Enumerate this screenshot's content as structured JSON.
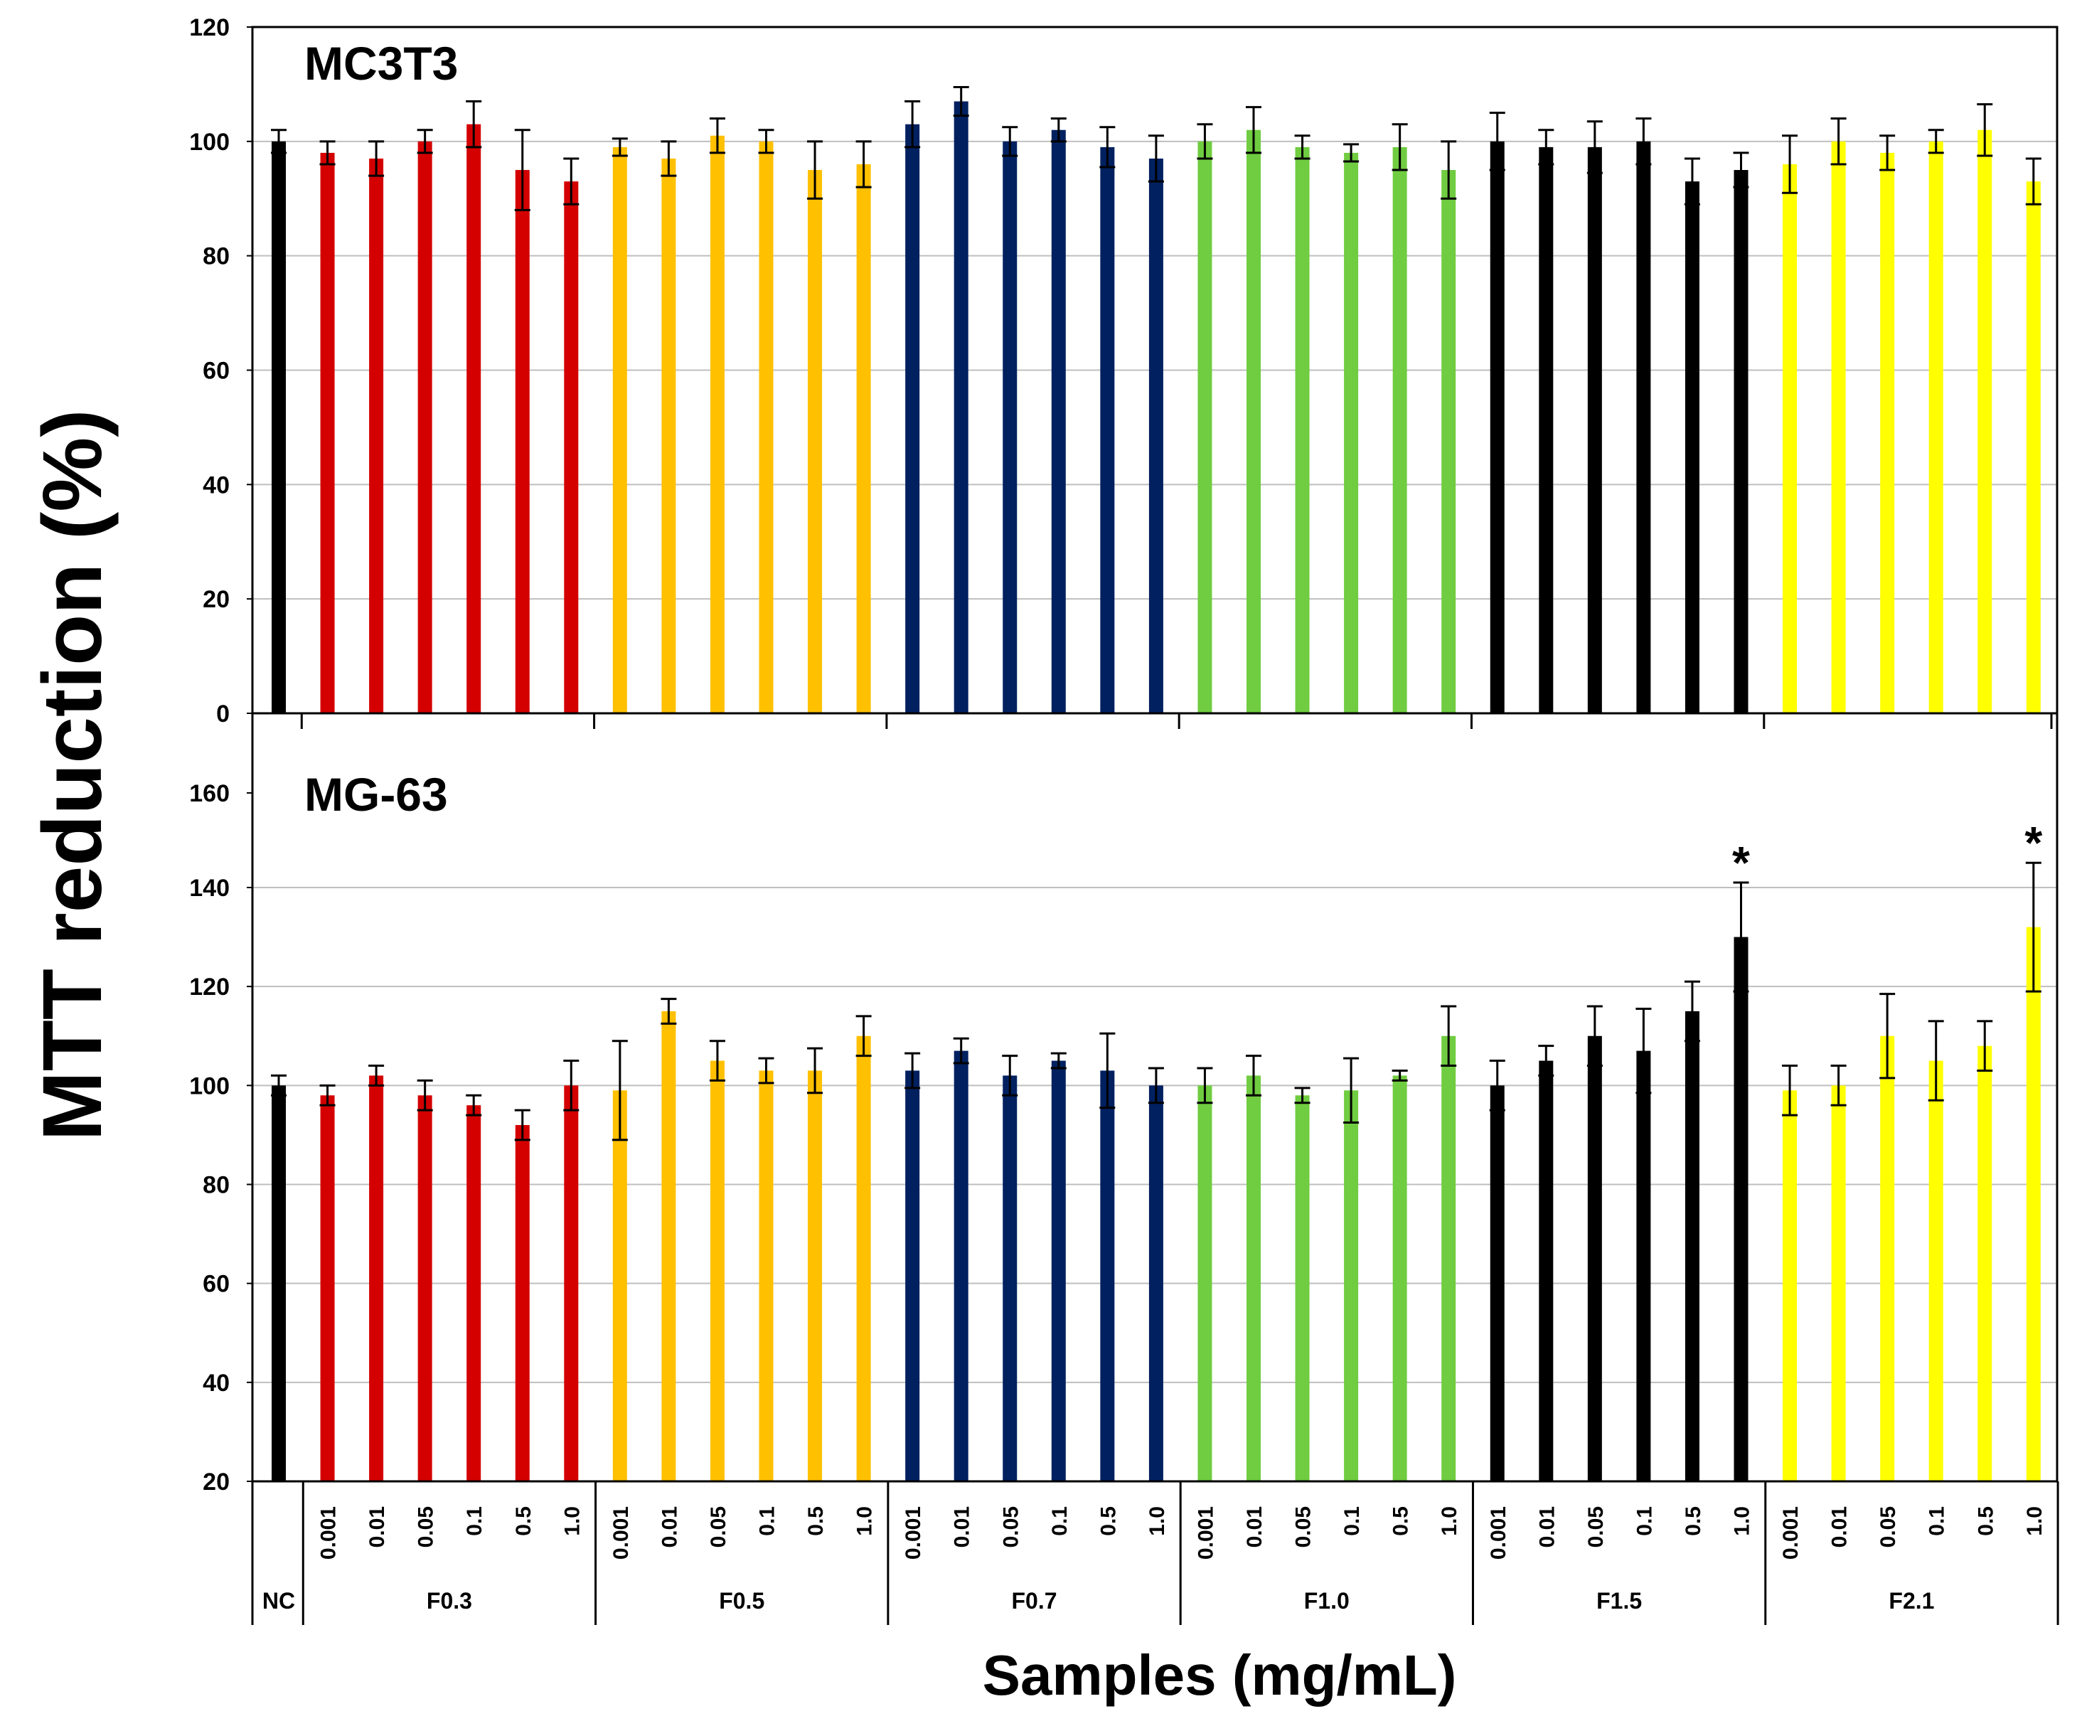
{
  "chart_data": {
    "type": "bar",
    "ylabel": "MTT reduction (%)",
    "xlabel": "Samples (mg/mL)",
    "groups": [
      {
        "name": "NC",
        "color": "#000000",
        "concentrations": [
          ""
        ]
      },
      {
        "name": "F0.3",
        "color": "#d40000",
        "concentrations": [
          "0.001",
          "0.01",
          "0.05",
          "0.1",
          "0.5",
          "1.0"
        ]
      },
      {
        "name": "F0.5",
        "color": "#ffc000",
        "concentrations": [
          "0.001",
          "0.01",
          "0.05",
          "0.1",
          "0.5",
          "1.0"
        ]
      },
      {
        "name": "F0.7",
        "color": "#002060",
        "concentrations": [
          "0.001",
          "0.01",
          "0.05",
          "0.1",
          "0.5",
          "1.0"
        ]
      },
      {
        "name": "F1.0",
        "color": "#70cc40",
        "concentrations": [
          "0.001",
          "0.01",
          "0.05",
          "0.1",
          "0.5",
          "1.0"
        ]
      },
      {
        "name": "F1.5",
        "color": "#000000",
        "concentrations": [
          "0.001",
          "0.01",
          "0.05",
          "0.1",
          "0.5",
          "1.0"
        ]
      },
      {
        "name": "F2.1",
        "color": "#ffff00",
        "concentrations": [
          "0.001",
          "0.01",
          "0.05",
          "0.1",
          "0.5",
          "1.0"
        ]
      }
    ],
    "panels": [
      {
        "title": "MC3T3",
        "ylim": [
          0,
          120
        ],
        "yticks": [
          0,
          20,
          40,
          60,
          80,
          100,
          120
        ],
        "grid": true,
        "values": [
          100,
          98,
          97,
          100,
          103,
          95,
          93,
          99,
          97,
          101,
          100,
          95,
          96,
          103,
          107,
          100,
          102,
          99,
          97,
          100,
          102,
          99,
          98,
          99,
          95,
          100,
          99,
          99,
          100,
          93,
          95,
          96,
          100,
          98,
          100,
          102,
          93
        ],
        "errors": [
          2,
          2,
          3,
          2,
          4,
          7,
          4,
          1.5,
          3,
          3,
          2,
          5,
          4,
          4,
          2.5,
          2.5,
          2,
          3.5,
          4,
          3,
          4,
          2,
          1.5,
          4,
          5,
          5,
          3,
          4.5,
          4,
          4,
          3,
          5,
          4,
          3,
          2,
          4.5,
          4
        ],
        "annotations": []
      },
      {
        "title": "MG-63",
        "ylim": [
          20,
          170
        ],
        "yticks": [
          20,
          40,
          60,
          80,
          100,
          120,
          140,
          160
        ],
        "grid": true,
        "values": [
          100,
          98,
          102,
          98,
          96,
          92,
          100,
          99,
          115,
          105,
          103,
          103,
          110,
          103,
          107,
          102,
          105,
          103,
          100,
          100,
          102,
          98,
          99,
          102,
          110,
          100,
          105,
          110,
          107,
          115,
          130,
          99,
          100,
          110,
          105,
          108,
          132
        ],
        "errors": [
          2,
          2,
          2,
          3,
          2,
          3,
          5,
          10,
          2.5,
          4,
          2.5,
          4.5,
          4,
          3.5,
          2.5,
          4,
          1.5,
          7.5,
          3.5,
          3.5,
          4,
          1.5,
          6.5,
          1,
          6,
          5,
          3,
          6,
          8.5,
          6,
          11,
          5,
          4,
          8.5,
          8,
          5,
          13
        ],
        "annotations": [
          {
            "index": 30,
            "text": "*"
          },
          {
            "index": 36,
            "text": "*"
          }
        ]
      }
    ]
  }
}
